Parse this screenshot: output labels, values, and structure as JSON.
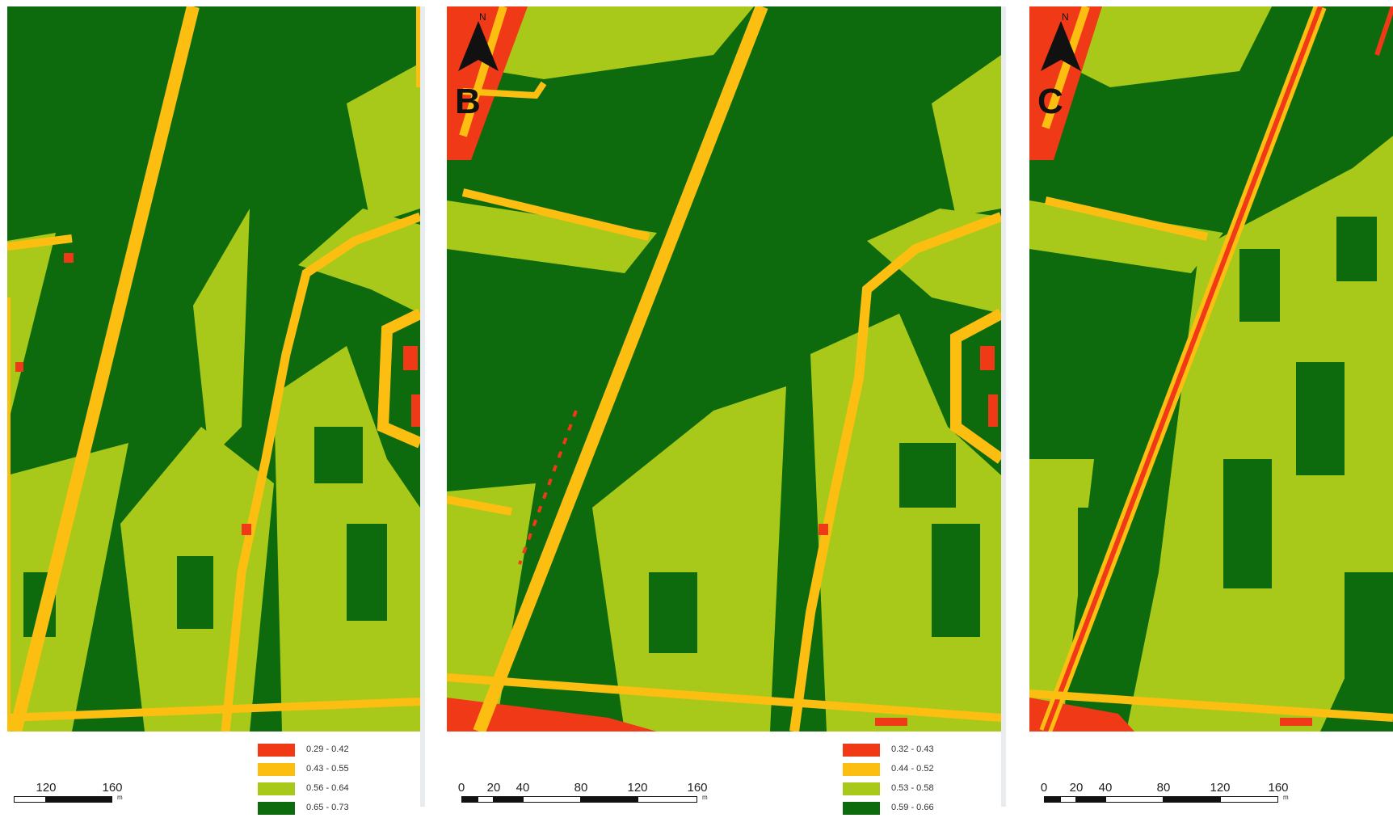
{
  "map_figure": {
    "class_colors": {
      "red": "#f03a17",
      "orange": "#fdbe12",
      "light_green": "#a9c91a",
      "dark_green": "#0d6a0d"
    },
    "north_arrow_letter": "N",
    "scale_unit": "m",
    "panels": [
      {
        "id": "A",
        "letter": "",
        "show_north_arrow": false,
        "scale_ticks": [
          "120",
          "160"
        ],
        "legend": [
          {
            "label": "0.29 - 0.42",
            "color": "#f03a17"
          },
          {
            "label": "0.43 - 0.55",
            "color": "#fdbe12"
          },
          {
            "label": "0.56 - 0.64",
            "color": "#a9c91a"
          },
          {
            "label": "0.65 - 0.73",
            "color": "#0d6a0d"
          }
        ]
      },
      {
        "id": "B",
        "letter": "B",
        "show_north_arrow": true,
        "scale_ticks": [
          "0",
          "20",
          "40",
          "80",
          "120",
          "160"
        ],
        "legend": [
          {
            "label": "0.32 - 0.43",
            "color": "#f03a17"
          },
          {
            "label": "0.44 - 0.52",
            "color": "#fdbe12"
          },
          {
            "label": "0.53 - 0.58",
            "color": "#a9c91a"
          },
          {
            "label": "0.59 - 0.66",
            "color": "#0d6a0d"
          }
        ]
      },
      {
        "id": "C",
        "letter": "C",
        "show_north_arrow": true,
        "scale_ticks": [
          "0",
          "20",
          "40",
          "80",
          "120",
          "160"
        ],
        "legend": []
      }
    ]
  }
}
